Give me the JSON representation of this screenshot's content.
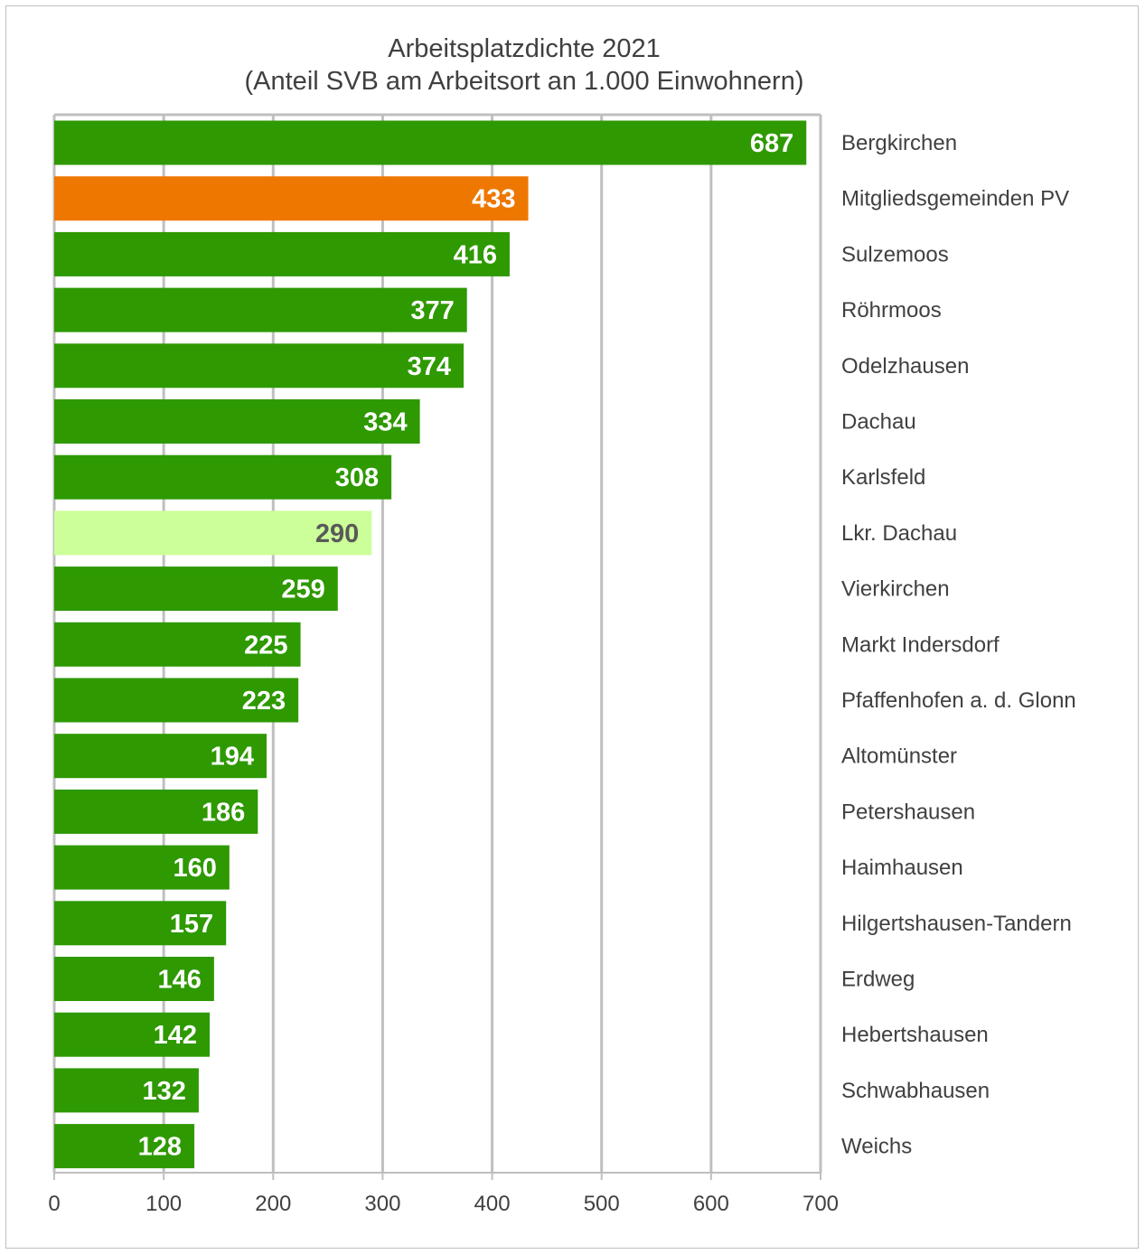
{
  "chart_data": {
    "type": "bar",
    "orientation": "horizontal",
    "title": "Arbeitsplatzdichte  2021",
    "subtitle": "(Anteil SVB am Arbeitsort an 1.000 Einwohnern)",
    "xlim": [
      0,
      700
    ],
    "x_ticks": [
      "0",
      "100",
      "200",
      "300",
      "400",
      "500",
      "600",
      "700"
    ],
    "grid": true,
    "categories": [
      "Bergkirchen",
      "Mitgliedsgemeinden PV",
      "Sulzemoos",
      "Röhrmoos",
      "Odelzhausen",
      "Dachau",
      "Karlsfeld",
      "Lkr. Dachau",
      "Vierkirchen",
      "Markt Indersdorf",
      "Pfaffenhofen a. d. Glonn",
      "Altomünster",
      "Petershausen",
      "Haimhausen",
      "Hilgertshausen-Tandern",
      "Erdweg",
      "Hebertshausen",
      "Schwabhausen",
      "Weichs"
    ],
    "values": [
      687,
      433,
      416,
      377,
      374,
      334,
      308,
      290,
      259,
      225,
      223,
      194,
      186,
      160,
      157,
      146,
      142,
      132,
      128
    ],
    "value_labels": [
      "687",
      "433",
      "416",
      "377",
      "374",
      "334",
      "308",
      "290",
      "259",
      "225",
      "223",
      "194",
      "186",
      "160",
      "157",
      "146",
      "142",
      "132",
      "128"
    ],
    "bar_colors": [
      "#2e9900",
      "#ee7700",
      "#2e9900",
      "#2e9900",
      "#2e9900",
      "#2e9900",
      "#2e9900",
      "#ccff99",
      "#2e9900",
      "#2e9900",
      "#2e9900",
      "#2e9900",
      "#2e9900",
      "#2e9900",
      "#2e9900",
      "#2e9900",
      "#2e9900",
      "#2e9900",
      "#2e9900"
    ],
    "label_colors": [
      "#ffffff",
      "#ffffff",
      "#ffffff",
      "#ffffff",
      "#ffffff",
      "#ffffff",
      "#ffffff",
      "#595959",
      "#ffffff",
      "#ffffff",
      "#ffffff",
      "#ffffff",
      "#ffffff",
      "#ffffff",
      "#ffffff",
      "#ffffff",
      "#ffffff",
      "#ffffff",
      "#ffffff"
    ],
    "grid_color": "#bfbfbf",
    "text_color": "#404040"
  }
}
